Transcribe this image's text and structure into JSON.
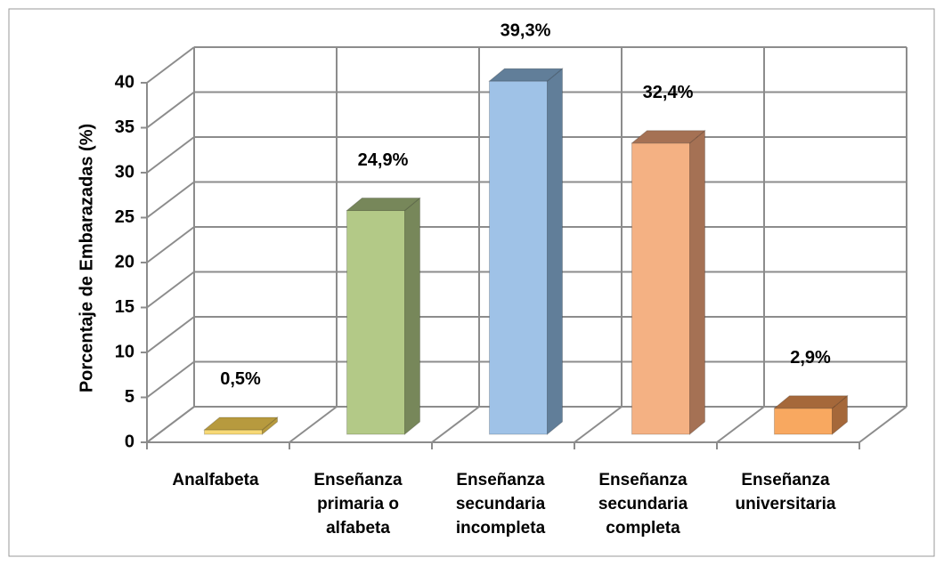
{
  "chart_data": {
    "type": "bar3d",
    "y_label": "Porcentaje de Embarazadas (%)",
    "categories": [
      "Analfabeta",
      "Enseñanza primaria o alfabeta",
      "Enseñanza secundaria incompleta",
      "Enseñanza secundaria completa",
      "Enseñanza universitaria"
    ],
    "values": [
      0.5,
      24.9,
      39.3,
      32.4,
      2.9
    ],
    "value_labels": [
      "0,5%",
      "24,9%",
      "39,3%",
      "32,4%",
      "2,9%"
    ],
    "colors": [
      "#f7d976",
      "#b3c987",
      "#9fc2e7",
      "#f4b183",
      "#f8a860"
    ],
    "side_colors": [
      "#b79a3e",
      "#77875a",
      "#617e99",
      "#a57154",
      "#a5683a"
    ],
    "ylim": [
      0,
      40
    ],
    "yticks": [
      0,
      5,
      10,
      15,
      20,
      25,
      30,
      35,
      40
    ],
    "grid": true
  }
}
